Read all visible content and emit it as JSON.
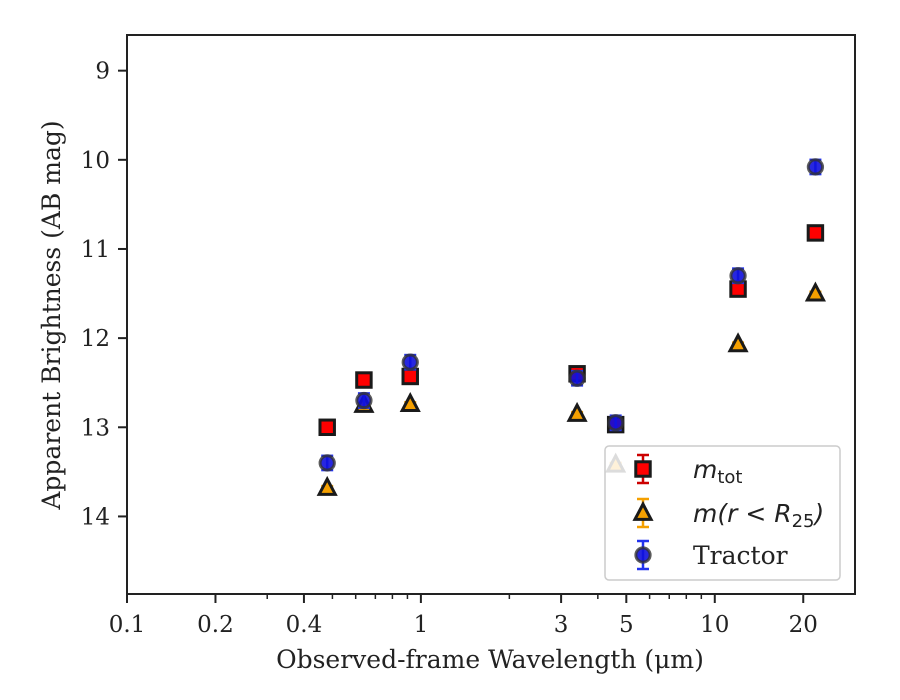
{
  "chart_data": {
    "type": "scatter",
    "xlabel": "Observed-frame Wavelength (μm)",
    "ylabel": "Apparent Brightness (AB mag)",
    "x_scale": "log",
    "xlim": [
      0.1,
      30
    ],
    "ylim": [
      14.87,
      8.6
    ],
    "y_inverted": true,
    "grid": false,
    "legend_position": "lower-right",
    "x_ticks": [
      0.1,
      0.2,
      0.4,
      1,
      3,
      5,
      10,
      20
    ],
    "x_tick_labels": [
      "0.1",
      "0.2",
      "0.4",
      "1",
      "3",
      "5",
      "10",
      "20"
    ],
    "y_ticks": [
      9,
      10,
      11,
      12,
      13,
      14
    ],
    "y_tick_labels": [
      "9",
      "10",
      "11",
      "12",
      "13",
      "14"
    ],
    "series": [
      {
        "name": "m_tot",
        "legend_label": "m_tot",
        "marker": "square",
        "face_color": "#ff0000",
        "edge_color": "#1a1a1a",
        "error_color": "#cc0000",
        "points": [
          {
            "x": 0.48,
            "y": 13.0,
            "err": 0.05
          },
          {
            "x": 0.64,
            "y": 12.47,
            "err": 0.05
          },
          {
            "x": 0.92,
            "y": 12.43,
            "err": 0.05
          },
          {
            "x": 3.4,
            "y": 12.4,
            "err": 0.05
          },
          {
            "x": 4.6,
            "y": 12.97,
            "err": 0.05
          },
          {
            "x": 12.0,
            "y": 11.45,
            "err": 0.05
          },
          {
            "x": 22.0,
            "y": 10.82,
            "err": 0.05
          }
        ]
      },
      {
        "name": "m(r < R25)",
        "legend_label": "m(r < R25)",
        "marker": "triangle",
        "face_color": "#f5a000",
        "edge_color": "#1a1a1a",
        "error_color": "#f5a000",
        "points": [
          {
            "x": 0.48,
            "y": 13.68,
            "err": 0.02
          },
          {
            "x": 0.64,
            "y": 12.75,
            "err": 0.02
          },
          {
            "x": 0.92,
            "y": 12.74,
            "err": 0.02
          },
          {
            "x": 3.4,
            "y": 12.85,
            "err": 0.02
          },
          {
            "x": 4.6,
            "y": 13.42,
            "err": 0.02
          },
          {
            "x": 12.0,
            "y": 12.07,
            "err": 0.02
          },
          {
            "x": 22.0,
            "y": 11.5,
            "err": 0.02
          }
        ]
      },
      {
        "name": "Tractor",
        "legend_label": "Tractor",
        "marker": "circle",
        "face_color": "#1010dd",
        "edge_color": "#333333",
        "error_color": "#2233ee",
        "points": [
          {
            "x": 0.48,
            "y": 13.4,
            "err": 0.08
          },
          {
            "x": 0.64,
            "y": 12.7,
            "err": 0.08
          },
          {
            "x": 0.92,
            "y": 12.27,
            "err": 0.08
          },
          {
            "x": 3.4,
            "y": 12.45,
            "err": 0.08
          },
          {
            "x": 4.6,
            "y": 12.95,
            "err": 0.08
          },
          {
            "x": 12.0,
            "y": 11.3,
            "err": 0.08
          },
          {
            "x": 22.0,
            "y": 10.08,
            "err": 0.08
          }
        ]
      }
    ]
  }
}
